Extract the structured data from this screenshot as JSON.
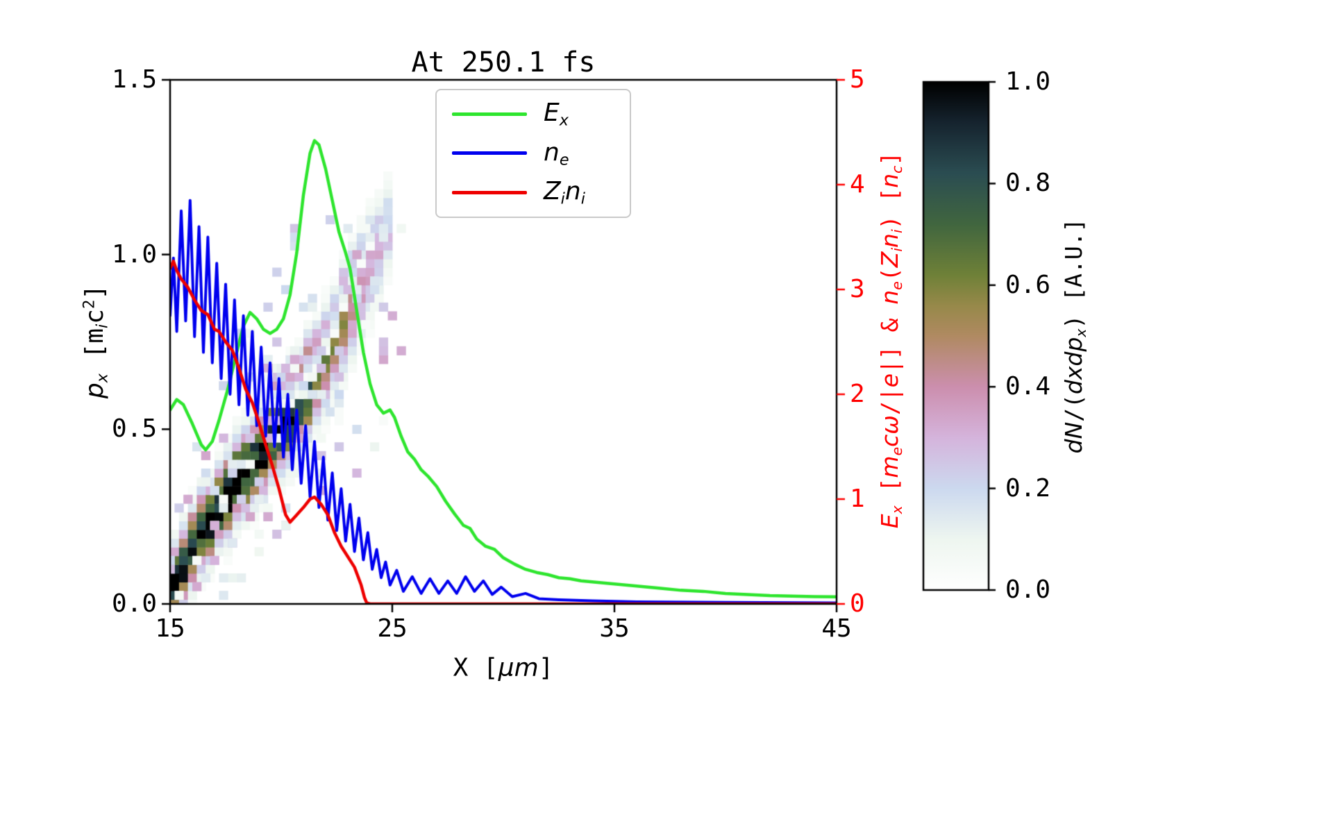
{
  "title": "At 250.1 fs",
  "labels": {
    "x_axis_segments": [
      [
        "n",
        "X ["
      ],
      [
        "i",
        "μm"
      ],
      [
        "n",
        "]"
      ]
    ],
    "y_left_segments": [
      [
        "i",
        "p"
      ],
      [
        "sub-i",
        "x"
      ],
      [
        "n",
        " ["
      ],
      [
        "n",
        "m"
      ],
      [
        "sub-i",
        "i"
      ],
      [
        "n",
        "c"
      ],
      [
        "sup",
        "2"
      ],
      [
        "n",
        "]"
      ]
    ],
    "y_right_segments": [
      [
        "i",
        "E"
      ],
      [
        "sub-i",
        "x"
      ],
      [
        "n",
        " ["
      ],
      [
        "i",
        "m"
      ],
      [
        "sub-i",
        "e"
      ],
      [
        "i",
        "cω"
      ],
      [
        "n",
        "/|"
      ],
      [
        "i",
        "e"
      ],
      [
        "n",
        "|] & "
      ],
      [
        "i",
        "n"
      ],
      [
        "sub-i",
        "e"
      ],
      [
        "n",
        "("
      ],
      [
        "i",
        "Z"
      ],
      [
        "sub-i",
        "i"
      ],
      [
        "i",
        "n"
      ],
      [
        "sub-i",
        "i"
      ],
      [
        "n",
        ") ["
      ],
      [
        "i",
        "n"
      ],
      [
        "sub-i",
        "c"
      ],
      [
        "n",
        "]"
      ]
    ],
    "colorbar_segments": [
      [
        "i",
        "dN"
      ],
      [
        "n",
        "/("
      ],
      [
        "i",
        "dxdp"
      ],
      [
        "sub-i",
        "x"
      ],
      [
        "n",
        ") [A.U.]"
      ]
    ]
  },
  "axes": {
    "x": {
      "min": 15,
      "max": 45,
      "ticks": [
        {
          "v": 15,
          "label": "15"
        },
        {
          "v": 25,
          "label": "25"
        },
        {
          "v": 35,
          "label": "35"
        },
        {
          "v": 45,
          "label": "45"
        }
      ]
    },
    "y_left": {
      "min": 0,
      "max": 1.5,
      "ticks": [
        {
          "v": 0.0,
          "label": "0.0"
        },
        {
          "v": 0.5,
          "label": "0.5"
        },
        {
          "v": 1.0,
          "label": "1.0"
        },
        {
          "v": 1.5,
          "label": "1.5"
        }
      ]
    },
    "y_right": {
      "min": 0,
      "max": 5,
      "color": "#ff0000",
      "ticks": [
        {
          "v": 0,
          "label": "0"
        },
        {
          "v": 1,
          "label": "1"
        },
        {
          "v": 2,
          "label": "2"
        },
        {
          "v": 3,
          "label": "3"
        },
        {
          "v": 4,
          "label": "4"
        },
        {
          "v": 5,
          "label": "5"
        }
      ]
    }
  },
  "legend": {
    "items": [
      {
        "name": "Ex",
        "color": "#2ee52e",
        "label_segments": [
          [
            "i",
            "E"
          ],
          [
            "sub-i",
            "x"
          ]
        ]
      },
      {
        "name": "ne",
        "color": "#0000ee",
        "label_segments": [
          [
            "i",
            "n"
          ],
          [
            "sub-i",
            "e"
          ]
        ]
      },
      {
        "name": "Zini",
        "color": "#ee0000",
        "label_segments": [
          [
            "i",
            "Z"
          ],
          [
            "sub-i",
            "i"
          ],
          [
            "i",
            "n"
          ],
          [
            "sub-i",
            "i"
          ]
        ]
      }
    ]
  },
  "colorbar": {
    "ticks": [
      {
        "v": 0.0,
        "label": "0.0"
      },
      {
        "v": 0.2,
        "label": "0.2"
      },
      {
        "v": 0.4,
        "label": "0.4"
      },
      {
        "v": 0.6,
        "label": "0.6"
      },
      {
        "v": 0.8,
        "label": "0.8"
      },
      {
        "v": 1.0,
        "label": "1.0"
      }
    ],
    "cmap_stops": [
      [
        0.0,
        "#ffffff"
      ],
      [
        0.1,
        "#eef6f0"
      ],
      [
        0.2,
        "#ccd9ef"
      ],
      [
        0.3,
        "#d5b4dc"
      ],
      [
        0.4,
        "#cc8fae"
      ],
      [
        0.5,
        "#b08a62"
      ],
      [
        0.56,
        "#97894a"
      ],
      [
        0.62,
        "#6f8138"
      ],
      [
        0.72,
        "#41663f"
      ],
      [
        0.82,
        "#2b4d52"
      ],
      [
        0.92,
        "#16242f"
      ],
      [
        1.0,
        "#000000"
      ]
    ]
  },
  "chart_data": {
    "type": "composite",
    "title": "At 250.1 fs",
    "xlabel": "X [um]",
    "x_range": [
      15,
      45
    ],
    "left_y_axis": {
      "label": "p_x [m_i c^2]",
      "range": [
        0,
        1.5
      ]
    },
    "right_y_axis": {
      "label": "E_x [m_e c w/|e|] & n_e(Z_i n_i) [n_c]",
      "range": [
        0,
        5
      ]
    },
    "legend_position": "upper center",
    "grid": false,
    "series": [
      {
        "name": "E_x",
        "type": "line",
        "axis": "right",
        "color": "#2ee52e",
        "linewidth": 4.5,
        "points": [
          [
            15,
            1.85
          ],
          [
            15.3,
            1.95
          ],
          [
            15.6,
            1.9
          ],
          [
            16,
            1.72
          ],
          [
            16.4,
            1.52
          ],
          [
            16.6,
            1.47
          ],
          [
            16.9,
            1.55
          ],
          [
            17.2,
            1.75
          ],
          [
            17.6,
            2.05
          ],
          [
            18,
            2.4
          ],
          [
            18.3,
            2.65
          ],
          [
            18.6,
            2.78
          ],
          [
            18.9,
            2.72
          ],
          [
            19.2,
            2.62
          ],
          [
            19.5,
            2.58
          ],
          [
            19.8,
            2.62
          ],
          [
            20.1,
            2.72
          ],
          [
            20.4,
            2.95
          ],
          [
            20.7,
            3.35
          ],
          [
            21,
            3.9
          ],
          [
            21.3,
            4.3
          ],
          [
            21.5,
            4.42
          ],
          [
            21.7,
            4.38
          ],
          [
            22,
            4.15
          ],
          [
            22.3,
            3.85
          ],
          [
            22.6,
            3.55
          ],
          [
            22.9,
            3.35
          ],
          [
            23.1,
            3.2
          ],
          [
            23.4,
            2.8
          ],
          [
            23.7,
            2.4
          ],
          [
            24,
            2.1
          ],
          [
            24.3,
            1.9
          ],
          [
            24.6,
            1.82
          ],
          [
            24.9,
            1.85
          ],
          [
            25.1,
            1.78
          ],
          [
            25.4,
            1.6
          ],
          [
            25.7,
            1.45
          ],
          [
            26,
            1.38
          ],
          [
            26.3,
            1.28
          ],
          [
            26.6,
            1.22
          ],
          [
            27,
            1.12
          ],
          [
            27.4,
            0.98
          ],
          [
            27.8,
            0.86
          ],
          [
            28.2,
            0.75
          ],
          [
            28.5,
            0.72
          ],
          [
            28.8,
            0.62
          ],
          [
            29.2,
            0.55
          ],
          [
            29.6,
            0.52
          ],
          [
            30,
            0.44
          ],
          [
            30.5,
            0.38
          ],
          [
            31,
            0.33
          ],
          [
            31.5,
            0.3
          ],
          [
            32,
            0.28
          ],
          [
            32.5,
            0.25
          ],
          [
            33,
            0.24
          ],
          [
            33.5,
            0.22
          ],
          [
            34,
            0.21
          ],
          [
            34.5,
            0.2
          ],
          [
            35,
            0.19
          ],
          [
            36,
            0.17
          ],
          [
            37,
            0.15
          ],
          [
            38,
            0.13
          ],
          [
            39,
            0.12
          ],
          [
            40,
            0.1
          ],
          [
            41,
            0.09
          ],
          [
            42,
            0.08
          ],
          [
            43,
            0.075
          ],
          [
            44,
            0.07
          ],
          [
            45,
            0.068
          ]
        ]
      },
      {
        "name": "n_e",
        "type": "line",
        "axis": "right",
        "color": "#0000ee",
        "linewidth": 4,
        "points": [
          [
            15,
            2.75
          ],
          [
            15.15,
            3.3
          ],
          [
            15.3,
            2.6
          ],
          [
            15.5,
            3.75
          ],
          [
            15.7,
            2.7
          ],
          [
            15.9,
            3.85
          ],
          [
            16.1,
            2.55
          ],
          [
            16.3,
            3.6
          ],
          [
            16.5,
            2.4
          ],
          [
            16.7,
            3.5
          ],
          [
            16.9,
            2.3
          ],
          [
            17.1,
            3.25
          ],
          [
            17.3,
            2.15
          ],
          [
            17.5,
            3.05
          ],
          [
            17.7,
            2.0
          ],
          [
            17.9,
            2.9
          ],
          [
            18.1,
            1.9
          ],
          [
            18.3,
            2.75
          ],
          [
            18.5,
            1.8
          ],
          [
            18.7,
            2.6
          ],
          [
            18.9,
            1.7
          ],
          [
            19.1,
            2.45
          ],
          [
            19.3,
            1.6
          ],
          [
            19.5,
            2.3
          ],
          [
            19.7,
            1.5
          ],
          [
            19.9,
            2.15
          ],
          [
            20.1,
            1.4
          ],
          [
            20.3,
            2.0
          ],
          [
            20.5,
            1.28
          ],
          [
            20.7,
            1.85
          ],
          [
            20.9,
            1.15
          ],
          [
            21.1,
            1.7
          ],
          [
            21.3,
            1.02
          ],
          [
            21.5,
            1.55
          ],
          [
            21.7,
            0.92
          ],
          [
            21.9,
            1.4
          ],
          [
            22.1,
            0.8
          ],
          [
            22.3,
            1.25
          ],
          [
            22.5,
            0.7
          ],
          [
            22.7,
            1.1
          ],
          [
            22.9,
            0.6
          ],
          [
            23.1,
            0.95
          ],
          [
            23.3,
            0.5
          ],
          [
            23.5,
            0.82
          ],
          [
            23.7,
            0.42
          ],
          [
            23.9,
            0.68
          ],
          [
            24.1,
            0.33
          ],
          [
            24.3,
            0.52
          ],
          [
            24.5,
            0.25
          ],
          [
            24.7,
            0.4
          ],
          [
            24.9,
            0.18
          ],
          [
            25.2,
            0.32
          ],
          [
            25.5,
            0.12
          ],
          [
            25.9,
            0.26
          ],
          [
            26.3,
            0.1
          ],
          [
            26.7,
            0.24
          ],
          [
            27.1,
            0.1
          ],
          [
            27.5,
            0.22
          ],
          [
            27.9,
            0.1
          ],
          [
            28.3,
            0.26
          ],
          [
            28.7,
            0.12
          ],
          [
            29.1,
            0.22
          ],
          [
            29.5,
            0.09
          ],
          [
            29.9,
            0.16
          ],
          [
            30.4,
            0.07
          ],
          [
            31,
            0.1
          ],
          [
            31.6,
            0.05
          ],
          [
            32.5,
            0.04
          ],
          [
            34,
            0.03
          ],
          [
            36,
            0.02
          ],
          [
            40,
            0.015
          ],
          [
            45,
            0.01
          ]
        ]
      },
      {
        "name": "Z_i n_i",
        "type": "line",
        "axis": "right",
        "color": "#ee0000",
        "linewidth": 4.5,
        "points": [
          [
            15,
            3.2
          ],
          [
            15.15,
            3.27
          ],
          [
            15.3,
            3.18
          ],
          [
            15.5,
            3.1
          ],
          [
            15.8,
            3.02
          ],
          [
            16.1,
            2.9
          ],
          [
            16.4,
            2.8
          ],
          [
            16.7,
            2.76
          ],
          [
            17,
            2.62
          ],
          [
            17.2,
            2.6
          ],
          [
            17.5,
            2.5
          ],
          [
            17.8,
            2.42
          ],
          [
            18.1,
            2.25
          ],
          [
            18.4,
            2.05
          ],
          [
            18.7,
            1.92
          ],
          [
            19,
            1.73
          ],
          [
            19.3,
            1.52
          ],
          [
            19.6,
            1.32
          ],
          [
            19.9,
            1.1
          ],
          [
            20.2,
            0.85
          ],
          [
            20.4,
            0.78
          ],
          [
            20.7,
            0.85
          ],
          [
            21,
            0.92
          ],
          [
            21.3,
            1.0
          ],
          [
            21.5,
            1.02
          ],
          [
            21.8,
            0.95
          ],
          [
            22.1,
            0.85
          ],
          [
            22.4,
            0.68
          ],
          [
            22.7,
            0.55
          ],
          [
            23,
            0.45
          ],
          [
            23.3,
            0.35
          ],
          [
            23.6,
            0.18
          ],
          [
            23.75,
            0.06
          ],
          [
            23.85,
            0.01
          ],
          [
            24,
            0
          ],
          [
            26,
            0
          ],
          [
            30,
            0
          ],
          [
            38,
            0
          ],
          [
            45,
            0
          ]
        ]
      }
    ],
    "phase_space_histogram": {
      "type": "heatmap",
      "axis": "left",
      "colorbar_label": "dN/(dxdp_x) [A.U.]",
      "value_range": [
        0,
        1
      ],
      "x_bin": 0.4,
      "p_bin": 0.025,
      "band": [
        [
          15.2,
          0.07,
          0.1,
          1.0
        ],
        [
          15.6,
          0.11,
          0.1,
          1.0
        ],
        [
          16.0,
          0.155,
          0.1,
          1.0
        ],
        [
          16.4,
          0.2,
          0.1,
          0.98
        ],
        [
          16.8,
          0.24,
          0.1,
          0.97
        ],
        [
          17.2,
          0.28,
          0.1,
          0.96
        ],
        [
          17.6,
          0.315,
          0.11,
          0.95
        ],
        [
          18.0,
          0.35,
          0.11,
          0.94
        ],
        [
          18.4,
          0.38,
          0.11,
          0.93
        ],
        [
          18.8,
          0.41,
          0.11,
          0.92
        ],
        [
          19.2,
          0.44,
          0.11,
          0.9
        ],
        [
          19.6,
          0.47,
          0.11,
          0.88
        ],
        [
          20.0,
          0.5,
          0.12,
          0.86
        ],
        [
          20.4,
          0.53,
          0.12,
          0.84
        ],
        [
          20.8,
          0.565,
          0.12,
          0.8
        ],
        [
          21.2,
          0.6,
          0.12,
          0.75
        ],
        [
          21.6,
          0.645,
          0.12,
          0.7
        ],
        [
          22.0,
          0.69,
          0.13,
          0.62
        ],
        [
          22.4,
          0.74,
          0.13,
          0.55
        ],
        [
          22.8,
          0.79,
          0.13,
          0.5
        ],
        [
          23.2,
          0.85,
          0.13,
          0.45
        ],
        [
          23.6,
          0.91,
          0.14,
          0.4
        ],
        [
          24.0,
          0.97,
          0.14,
          0.35
        ],
        [
          24.4,
          1.03,
          0.14,
          0.3
        ],
        [
          24.8,
          1.08,
          0.13,
          0.25
        ]
      ],
      "secondary_band": [
        [
          19.6,
          0.62,
          0.05,
          0.28
        ],
        [
          20.0,
          0.64,
          0.05,
          0.3
        ],
        [
          20.4,
          0.66,
          0.06,
          0.34
        ],
        [
          20.8,
          0.685,
          0.06,
          0.38
        ],
        [
          21.2,
          0.715,
          0.06,
          0.38
        ],
        [
          21.6,
          0.755,
          0.06,
          0.34
        ],
        [
          22.0,
          0.805,
          0.06,
          0.3
        ],
        [
          22.4,
          0.86,
          0.06,
          0.28
        ],
        [
          22.8,
          0.92,
          0.06,
          0.26
        ],
        [
          23.2,
          0.98,
          0.06,
          0.24
        ],
        [
          23.6,
          1.04,
          0.05,
          0.2
        ],
        [
          24.0,
          1.08,
          0.05,
          0.18
        ]
      ],
      "speckle": {
        "seed": 13,
        "count": 160,
        "x_range": [
          15,
          25.3
        ],
        "p_max": 1.12,
        "spread": 0.45,
        "max_intensity": 0.3
      }
    }
  }
}
